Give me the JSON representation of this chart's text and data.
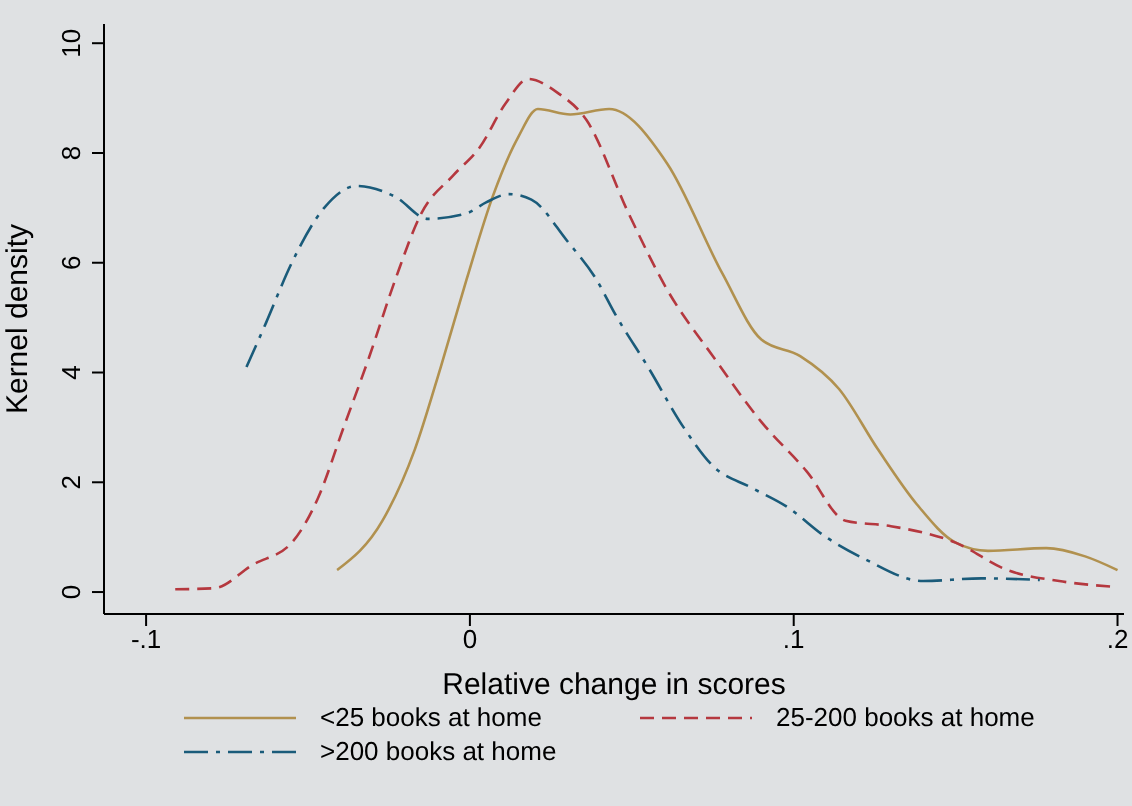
{
  "chart_data": {
    "type": "line",
    "xlabel": "Relative change in scores",
    "ylabel": "Kernel density",
    "xlim": [
      -0.113,
      0.202
    ],
    "xticks": [
      {
        "value": -0.1,
        "label": "-.1"
      },
      0,
      {
        "value": 0.1,
        "label": ".1"
      },
      {
        "value": 0.2,
        "label": ".2"
      }
    ],
    "ylim": [
      -0.4,
      10.35
    ],
    "yticks": [
      0,
      2,
      4,
      6,
      8,
      10
    ],
    "legend": "bottom",
    "marker": "none",
    "series": [
      {
        "name": "<25 books at home",
        "color": "#b1914f",
        "line_style": "solid",
        "x": [
          -0.041,
          -0.027,
          -0.017,
          -0.009,
          -0.001,
          0.007,
          0.015,
          0.021,
          0.031,
          0.043,
          0.061,
          0.078,
          0.09,
          0.102,
          0.114,
          0.126,
          0.138,
          0.15,
          0.16,
          0.178,
          0.19,
          0.2
        ],
        "values": [
          0.4,
          1.3,
          2.6,
          4.1,
          5.7,
          7.2,
          8.3,
          8.8,
          8.7,
          8.8,
          7.8,
          5.8,
          4.6,
          4.3,
          3.7,
          2.6,
          1.6,
          0.9,
          0.75,
          0.8,
          0.65,
          0.4
        ]
      },
      {
        "name": "25-200 books at home",
        "color": "#b5383f",
        "line_style": "dashed",
        "x": [
          -0.091,
          -0.079,
          -0.067,
          -0.055,
          -0.047,
          -0.039,
          -0.031,
          -0.023,
          -0.015,
          -0.005,
          0.003,
          0.011,
          0.018,
          0.027,
          0.036,
          0.049,
          0.061,
          0.075,
          0.09,
          0.104,
          0.116,
          0.13,
          0.15,
          0.166,
          0.182,
          0.198
        ],
        "values": [
          0.05,
          0.07,
          0.5,
          0.9,
          1.7,
          3,
          4.3,
          5.7,
          6.9,
          7.6,
          8.1,
          8.9,
          9.35,
          9.1,
          8.6,
          6.9,
          5.5,
          4.3,
          3.1,
          2.2,
          1.3,
          1.2,
          0.9,
          0.4,
          0.2,
          0.1
        ]
      },
      {
        "name": ">200 books at home",
        "color": "#1a5b7a",
        "line_style": "dashdot",
        "x": [
          -0.069,
          -0.063,
          -0.055,
          -0.045,
          -0.035,
          -0.023,
          -0.013,
          -0.001,
          0.005,
          0.012,
          0.019,
          0.03,
          0.039,
          0.045,
          0.055,
          0.066,
          0.075,
          0.087,
          0.098,
          0.11,
          0.122,
          0.14,
          0.158,
          0.176
        ],
        "values": [
          4.1,
          4.9,
          6,
          7,
          7.4,
          7.2,
          6.8,
          6.9,
          7.1,
          7.25,
          7.15,
          6.4,
          5.7,
          5.05,
          4.1,
          3,
          2.3,
          1.9,
          1.55,
          1,
          0.6,
          0.2,
          0.25,
          0.22
        ]
      }
    ]
  }
}
